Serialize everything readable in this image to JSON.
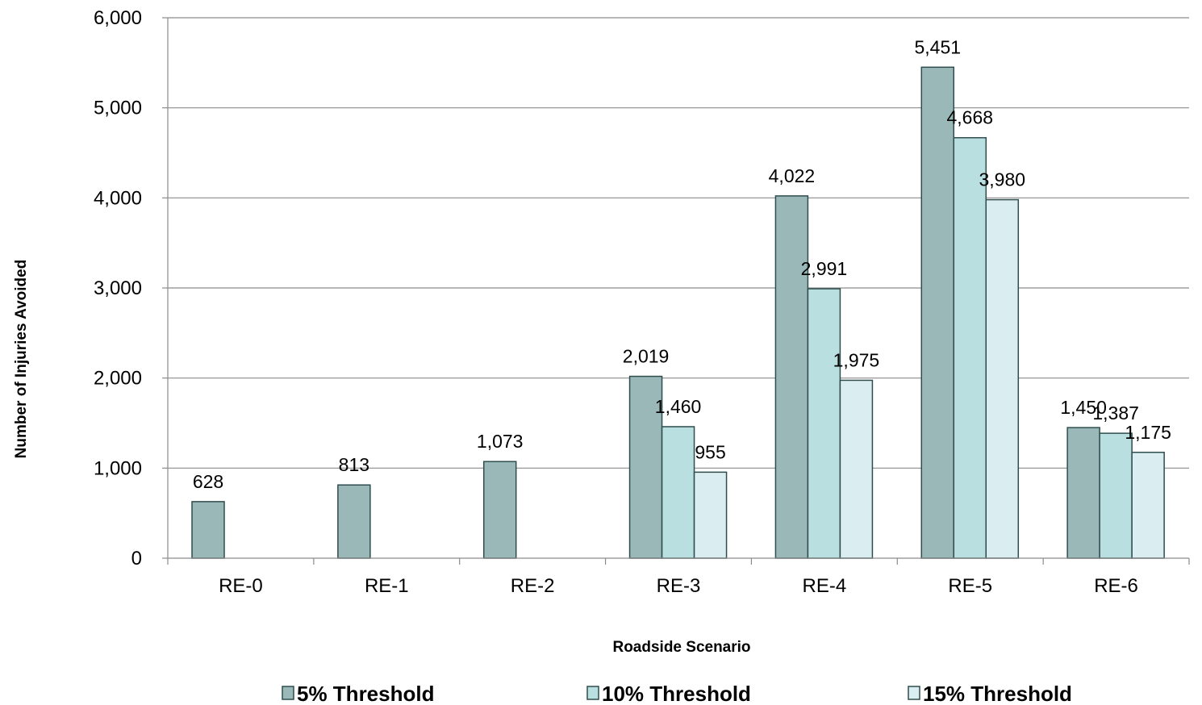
{
  "chart_data": {
    "type": "bar",
    "xlabel": "Roadside Scenario",
    "ylabel": "Number of Injuries Avoided",
    "ylim": [
      0,
      6000
    ],
    "yticks": [
      "0",
      "1,000",
      "2,000",
      "3,000",
      "4,000",
      "5,000",
      "6,000"
    ],
    "categories": [
      "RE-0",
      "RE-1",
      "RE-2",
      "RE-3",
      "RE-4",
      "RE-5",
      "RE-6"
    ],
    "grid": true,
    "legend_position": "bottom",
    "series": [
      {
        "name": "5% Threshold",
        "color": "#9bb8b8",
        "values": [
          628,
          813,
          1073,
          2019,
          4022,
          5451,
          1450
        ],
        "labels": [
          "628",
          "813",
          "1,073",
          "2,019",
          "4,022",
          "5,451",
          "1,450"
        ]
      },
      {
        "name": "10% Threshold",
        "color": "#b9dfe0",
        "values": [
          null,
          null,
          null,
          1460,
          2991,
          4668,
          1387
        ],
        "labels": [
          "",
          "",
          "",
          "1,460",
          "2,991",
          "4,668",
          "1,387"
        ]
      },
      {
        "name": "15% Threshold",
        "color": "#daedf0",
        "values": [
          null,
          null,
          null,
          955,
          1975,
          3980,
          1175
        ],
        "labels": [
          "",
          "",
          "",
          "955",
          "1,975",
          "3,980",
          "1,175"
        ]
      }
    ]
  }
}
